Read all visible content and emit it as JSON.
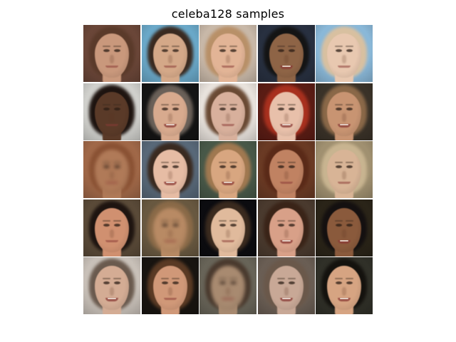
{
  "title": "celeba128 samples",
  "samples": [
    {
      "bg": "#6a4638",
      "hair": "#5a3a2a",
      "skin": "#c9987c",
      "smile": false
    },
    {
      "bg": "#6aa8c8",
      "hair": "#3a2a20",
      "skin": "#d4a888",
      "smile": false
    },
    {
      "bg": "#c8b8a8",
      "hair": "#b89068",
      "skin": "#e2b496",
      "smile": false
    },
    {
      "bg": "#283040",
      "hair": "#141414",
      "skin": "#8e6446",
      "smile": true
    },
    {
      "bg": "#8ab8d8",
      "hair": "#d8c0a0",
      "skin": "#e8c8b0",
      "smile": false
    },
    {
      "bg": "#d0d0cc",
      "hair": "#1e1410",
      "skin": "#5a3a28",
      "smile": false
    },
    {
      "bg": "#141414",
      "hair": "#6a6058",
      "skin": "#d8aa8e",
      "smile": true
    },
    {
      "bg": "#e8e2dc",
      "hair": "#6a4a34",
      "skin": "#d8b09c",
      "smile": false
    },
    {
      "bg": "#5a1c14",
      "hair": "#a8301e",
      "skin": "#e8c0aa",
      "smile": true
    },
    {
      "bg": "#3a3228",
      "hair": "#8a6848",
      "skin": "#c89472",
      "smile": true
    },
    {
      "bg": "#a06848",
      "hair": "#8a5234",
      "skin": "#b07a58",
      "smile": false,
      "blurry": true
    },
    {
      "bg": "#586878",
      "hair": "#3a2a20",
      "skin": "#e6bca4",
      "smile": true
    },
    {
      "bg": "#485848",
      "hair": "#a07850",
      "skin": "#d8a680",
      "smile": true
    },
    {
      "bg": "#6a3a24",
      "hair": "#5a2a18",
      "skin": "#c08262",
      "smile": false
    },
    {
      "bg": "#a09070",
      "hair": "#c8b490",
      "skin": "#d8b496",
      "smile": false
    },
    {
      "bg": "#5a4a38",
      "hair": "#1e1410",
      "skin": "#d09070",
      "smile": false
    },
    {
      "bg": "#685840",
      "hair": "#8a6a48",
      "skin": "#b88a64",
      "smile": false,
      "blurry": true
    },
    {
      "bg": "#0c0c10",
      "hair": "#3a2a1e",
      "skin": "#e0ba9c",
      "smile": false
    },
    {
      "bg": "#4a3a2e",
      "hair": "#3a2418",
      "skin": "#d8a088",
      "smile": true
    },
    {
      "bg": "#2a2418",
      "hair": "#141010",
      "skin": "#8a5a3c",
      "smile": true
    },
    {
      "bg": "#c8c0b8",
      "hair": "#6a5a4e",
      "skin": "#d4ac94",
      "smile": true
    },
    {
      "bg": "#181410",
      "hair": "#5a3a24",
      "skin": "#d09878",
      "smile": false
    },
    {
      "bg": "#686458",
      "hair": "#4a3a2e",
      "skin": "#a88a70",
      "smile": false,
      "blurry": true
    },
    {
      "bg": "#6a5e54",
      "hair": "#6a584a",
      "skin": "#c8a896",
      "smile": true
    },
    {
      "bg": "#303028",
      "hair": "#14120e",
      "skin": "#d6a482",
      "smile": true
    }
  ]
}
